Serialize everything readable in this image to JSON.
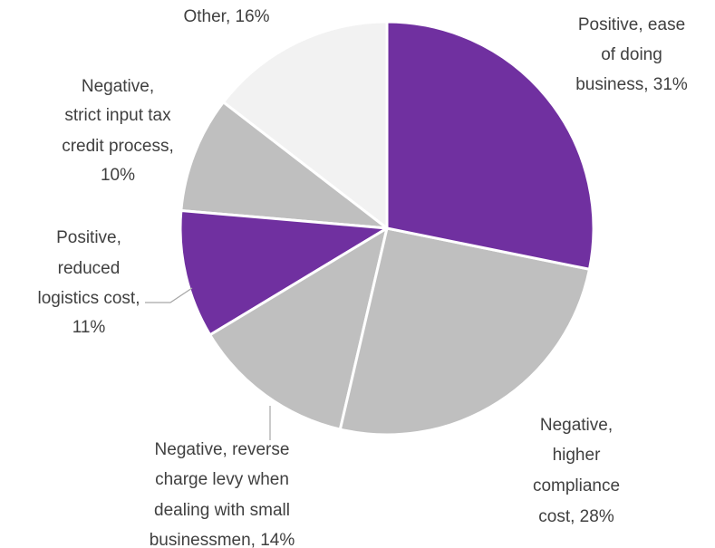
{
  "chart_data": {
    "type": "pie",
    "categories": [
      "Positive, ease of doing business",
      "Negative, higher compliance cost",
      "Negative, reverse charge levy when dealing with small businessmen",
      "Positive, reduced logistics cost",
      "Negative, strict input tax credit process",
      "Other"
    ],
    "values": [
      31,
      28,
      14,
      11,
      10,
      16
    ],
    "value_labels": [
      [
        "Positive, ease",
        "of doing",
        "business, 31%"
      ],
      [
        "Negative,",
        "higher",
        "compliance",
        "cost, 28%"
      ],
      [
        "Negative, reverse",
        "charge levy when",
        "dealing with small",
        "businessmen, 14%"
      ],
      [
        "Positive,",
        "reduced",
        "logistics cost,",
        "11%"
      ],
      [
        "Negative,",
        "strict input tax",
        "credit process,",
        "10%"
      ],
      [
        "Other, 16%"
      ]
    ],
    "colors": [
      "#7030a0",
      "#bfbfbf",
      "#bfbfbf",
      "#7030a0",
      "#bfbfbf",
      "#f2f2f2"
    ]
  }
}
